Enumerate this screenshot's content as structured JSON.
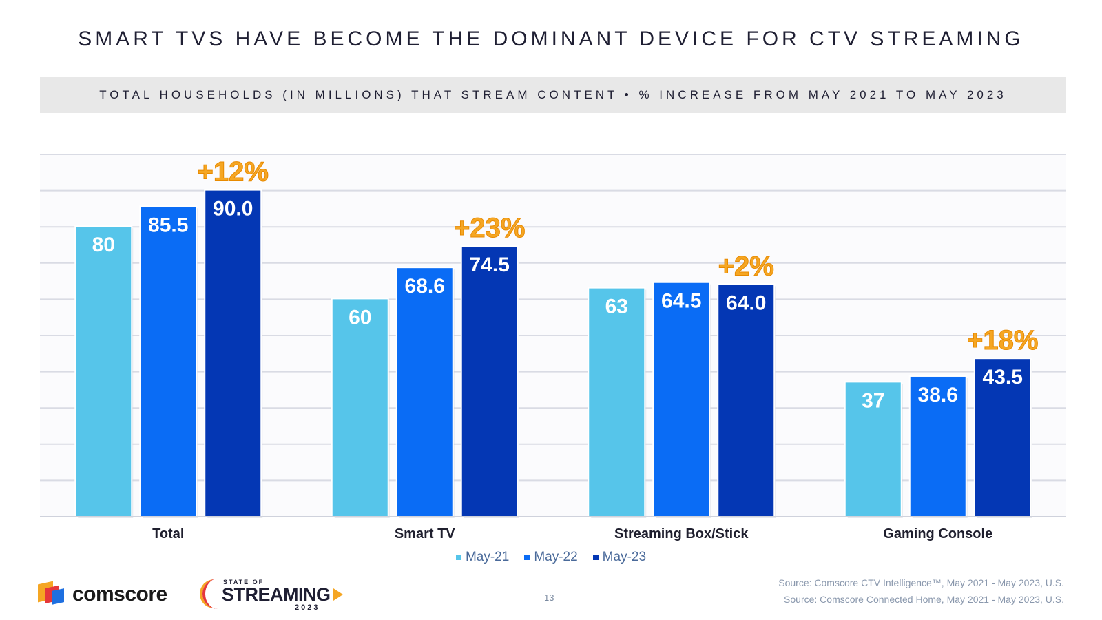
{
  "title": "SMART TVS HAVE BECOME THE DOMINANT DEVICE FOR CTV STREAMING",
  "subtitle": "TOTAL HOUSEHOLDS (IN MILLIONS) THAT STREAM CONTENT • % INCREASE FROM MAY 2021 TO MAY 2023",
  "chart_data": {
    "type": "bar",
    "title": "SMART TVS HAVE BECOME THE DOMINANT DEVICE FOR CTV STREAMING",
    "subtitle": "TOTAL HOUSEHOLDS (IN MILLIONS) THAT STREAM CONTENT • % INCREASE FROM MAY 2021 TO MAY 2023",
    "xlabel": "",
    "ylabel": "",
    "ylim": [
      0,
      100
    ],
    "grid": true,
    "legend_position": "bottom",
    "categories": [
      "Total",
      "Smart TV",
      "Streaming Box/Stick",
      "Gaming Console"
    ],
    "series": [
      {
        "name": "May-21",
        "values": [
          80,
          60,
          63,
          37
        ],
        "labels": [
          "80",
          "60",
          "63",
          "37"
        ],
        "color": "#56c5ea"
      },
      {
        "name": "May-22",
        "values": [
          85.5,
          68.6,
          64.5,
          38.6
        ],
        "labels": [
          "85.5",
          "68.6",
          "64.5",
          "38.6"
        ],
        "color": "#0a6cf5"
      },
      {
        "name": "May-23",
        "values": [
          90.0,
          74.5,
          64.0,
          43.5
        ],
        "labels": [
          "90.0",
          "74.5",
          "64.0",
          "43.5"
        ],
        "color": "#0437b4"
      }
    ],
    "annotations": [
      "+12%",
      "+23%",
      "+2%",
      "+18%"
    ],
    "annotation_color": "#f5a623"
  },
  "footer": {
    "brand": "comscore",
    "sos_top": "STATE OF",
    "sos_main": "STREAMING",
    "sos_year": "2023",
    "page_number": "13",
    "source_1": "Source: Comscore CTV Intelligence™, May 2021 - May 2023, U.S.",
    "source_2": "Source: Comscore Connected Home, May 2021 - May 2023, U.S."
  }
}
